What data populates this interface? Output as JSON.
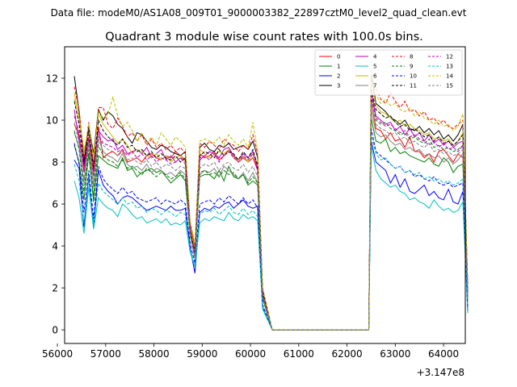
{
  "suptitle": "Data file: modeM0/AS1A08_009T01_9000003382_22897cztM0_level2_quad_clean.evt",
  "chart_data": {
    "type": "line",
    "title": "Quadrant 3 module wise count rates with 100.0s bins.",
    "xlabel": "",
    "ylabel": "",
    "x_offset_label": "+3.147e8",
    "xlim": [
      56150,
      64450
    ],
    "ylim": [
      -0.65,
      13.5
    ],
    "xticks": [
      56000,
      57000,
      58000,
      59000,
      60000,
      61000,
      62000,
      63000,
      64000
    ],
    "yticks": [
      0,
      2,
      4,
      6,
      8,
      10,
      12
    ],
    "x_start": 56350,
    "x_step": 100,
    "gap_start": 60350,
    "gap_end": 62500,
    "legend_position": "upper right",
    "legend_ncol": 4,
    "series": [
      {
        "name": "0",
        "color": "#ff0000",
        "dash": "solid",
        "segA": [
          9.8,
          9.3,
          7.6,
          9.1,
          7.5,
          9.7,
          8.2,
          8.4,
          8.5,
          8.3,
          8.6,
          8.0,
          8.1,
          8.2,
          8.0,
          8.3,
          8.4,
          8.2,
          8.1,
          8.3,
          8.2,
          8.5,
          8.3,
          8.1,
          4.8,
          3.8,
          8.4,
          8.2,
          8.3,
          8.5,
          8.1,
          8.3,
          8.6,
          8.3,
          8.0,
          8.2,
          8.0,
          8.2,
          7.6,
          1.8
        ],
        "segB": [
          10.9,
          9.6,
          9.5,
          9.1,
          9.4,
          9.0,
          9.1,
          8.7,
          9.2,
          8.5,
          8.5,
          8.2,
          8.4,
          8.0,
          8.5,
          8.6,
          8.3,
          8.0,
          8.4,
          8.2,
          1.9
        ]
      },
      {
        "name": "1",
        "color": "#008000",
        "dash": "solid",
        "segA": [
          8.8,
          8.0,
          6.2,
          8.4,
          6.1,
          8.3,
          8.1,
          7.9,
          7.8,
          7.7,
          8.2,
          7.6,
          7.7,
          7.3,
          7.5,
          7.6,
          7.7,
          7.5,
          7.6,
          7.3,
          7.0,
          7.2,
          7.4,
          7.1,
          4.5,
          3.5,
          7.3,
          7.4,
          7.4,
          7.2,
          7.6,
          7.1,
          7.8,
          7.3,
          7.2,
          7.4,
          6.9,
          7.1,
          6.9,
          1.5
        ],
        "segB": [
          10.1,
          9.0,
          8.9,
          9.1,
          8.5,
          8.7,
          8.4,
          8.5,
          8.3,
          8.2,
          8.1,
          8.0,
          8.2,
          7.9,
          7.8,
          8.2,
          8.0,
          7.5,
          7.8,
          7.9,
          1.4
        ]
      },
      {
        "name": "2",
        "color": "#0000ff",
        "dash": "solid",
        "segA": [
          8.1,
          7.7,
          4.9,
          7.3,
          4.9,
          7.6,
          6.9,
          6.6,
          6.4,
          6.0,
          6.3,
          6.4,
          6.3,
          6.1,
          5.9,
          5.7,
          5.8,
          5.9,
          5.8,
          5.7,
          5.9,
          5.7,
          5.7,
          5.8,
          3.9,
          2.7,
          5.6,
          5.8,
          5.7,
          5.9,
          5.8,
          6.0,
          6.1,
          5.8,
          6.0,
          6.2,
          5.9,
          5.8,
          5.9,
          1.1
        ],
        "segB": [
          9.0,
          8.0,
          7.8,
          7.6,
          7.0,
          7.4,
          6.8,
          7.2,
          6.6,
          6.5,
          6.7,
          6.9,
          6.4,
          6.6,
          6.3,
          6.2,
          6.7,
          6.1,
          6.0,
          6.6,
          0.9
        ]
      },
      {
        "name": "3",
        "color": "#000000",
        "dash": "solid",
        "segA": [
          12.1,
          10.4,
          8.0,
          9.7,
          8.4,
          10.5,
          10.0,
          10.4,
          10.2,
          9.8,
          9.6,
          9.2,
          8.9,
          9.4,
          9.3,
          9.0,
          8.7,
          8.6,
          8.8,
          8.7,
          8.5,
          8.4,
          8.3,
          8.5,
          5.0,
          3.9,
          8.7,
          8.9,
          8.6,
          8.5,
          8.8,
          8.7,
          8.9,
          8.6,
          8.7,
          8.8,
          8.6,
          9.0,
          8.2,
          1.9
        ],
        "segB": [
          12.2,
          10.8,
          10.6,
          10.4,
          10.1,
          10.0,
          9.8,
          10.0,
          9.6,
          9.5,
          9.7,
          9.4,
          9.6,
          9.3,
          9.5,
          9.1,
          9.3,
          9.0,
          9.3,
          9.8,
          2.1
        ]
      },
      {
        "name": "4",
        "color": "#bf00bf",
        "dash": "solid",
        "segA": [
          10.5,
          9.0,
          7.8,
          9.2,
          7.9,
          9.5,
          9.2,
          9.0,
          9.1,
          8.6,
          8.8,
          8.4,
          8.5,
          8.6,
          8.4,
          8.7,
          8.2,
          8.4,
          8.6,
          8.1,
          8.3,
          8.0,
          8.2,
          8.1,
          4.6,
          3.6,
          8.1,
          8.3,
          8.5,
          8.4,
          8.2,
          8.6,
          8.7,
          8.3,
          8.1,
          8.4,
          8.2,
          8.5,
          7.6,
          1.7
        ],
        "segB": [
          11.4,
          10.2,
          10.0,
          9.8,
          9.9,
          9.5,
          9.7,
          9.3,
          9.6,
          9.2,
          9.4,
          9.0,
          9.3,
          8.9,
          9.1,
          8.8,
          9.0,
          8.7,
          8.9,
          9.0,
          1.9
        ]
      },
      {
        "name": "5",
        "color": "#00bfbf",
        "dash": "solid",
        "segA": [
          7.1,
          6.3,
          4.6,
          6.8,
          4.8,
          6.3,
          6.0,
          5.8,
          5.7,
          5.4,
          6.0,
          5.8,
          5.5,
          5.3,
          5.4,
          5.1,
          5.2,
          5.3,
          5.1,
          5.3,
          5.0,
          5.1,
          5.0,
          5.2,
          3.7,
          3.0,
          5.1,
          5.3,
          5.2,
          5.4,
          5.3,
          5.2,
          5.6,
          5.3,
          5.2,
          5.5,
          5.3,
          5.4,
          5.2,
          1.0
        ],
        "segB": [
          8.8,
          7.6,
          7.2,
          7.0,
          6.8,
          6.9,
          6.6,
          6.5,
          6.2,
          6.3,
          6.1,
          6.0,
          5.8,
          6.2,
          5.9,
          5.7,
          5.8,
          5.6,
          5.7,
          6.1,
          0.8
        ]
      },
      {
        "name": "6",
        "color": "#bfbf00",
        "dash": "solid",
        "segA": [
          11.3,
          10.0,
          8.6,
          9.4,
          8.3,
          10.3,
          9.8,
          9.5,
          9.2,
          8.9,
          9.1,
          8.8,
          8.4,
          8.6,
          8.5,
          8.3,
          8.2,
          8.4,
          8.1,
          8.3,
          8.0,
          8.2,
          8.3,
          8.0,
          4.9,
          3.9,
          8.6,
          8.4,
          8.2,
          8.3,
          8.5,
          8.4,
          8.6,
          8.2,
          8.1,
          8.3,
          8.0,
          8.4,
          7.9,
          1.8
        ],
        "segB": [
          11.9,
          10.7,
          10.4,
          10.3,
          10.1,
          9.9,
          10.0,
          9.7,
          9.8,
          9.6,
          9.5,
          9.3,
          9.4,
          9.1,
          9.2,
          9.0,
          9.1,
          8.8,
          9.0,
          9.4,
          1.9
        ]
      },
      {
        "name": "7",
        "color": "#808080",
        "dash": "solid",
        "segA": [
          9.4,
          8.7,
          7.0,
          8.9,
          6.8,
          9.1,
          8.5,
          8.3,
          8.2,
          8.0,
          8.4,
          7.9,
          7.7,
          7.8,
          7.6,
          7.9,
          7.5,
          7.7,
          7.6,
          7.4,
          7.5,
          7.3,
          7.6,
          7.4,
          4.5,
          3.4,
          7.4,
          7.6,
          7.5,
          7.7,
          7.3,
          7.8,
          7.6,
          7.4,
          7.2,
          7.5,
          7.1,
          7.5,
          7.0,
          1.6
        ],
        "segB": [
          10.5,
          9.4,
          9.2,
          9.3,
          9.0,
          8.8,
          8.9,
          8.6,
          8.7,
          8.5,
          8.6,
          8.3,
          8.4,
          8.2,
          8.3,
          8.0,
          8.2,
          7.9,
          8.1,
          8.4,
          1.6
        ]
      },
      {
        "name": "8",
        "color": "#ff0000",
        "dash": "dashed",
        "segA": [
          11.6,
          10.5,
          8.2,
          9.9,
          8.0,
          10.6,
          10.6,
          9.8,
          9.6,
          10.1,
          9.7,
          9.2,
          9.4,
          9.0,
          9.3,
          8.8,
          9.1,
          8.7,
          8.9,
          8.6,
          8.8,
          8.5,
          8.7,
          8.4,
          5.0,
          4.0,
          8.9,
          8.7,
          9.0,
          8.8,
          8.6,
          9.1,
          8.9,
          8.8,
          8.5,
          8.8,
          8.6,
          9.3,
          8.4,
          2.0
        ],
        "segB": [
          12.1,
          11.5,
          11.0,
          10.8,
          11.3,
          10.9,
          10.6,
          10.9,
          10.4,
          10.5,
          10.2,
          10.4,
          10.0,
          10.1,
          9.8,
          10.0,
          9.7,
          9.6,
          9.8,
          10.0,
          2.2
        ]
      },
      {
        "name": "9",
        "color": "#008000",
        "dash": "dashed",
        "segA": [
          9.5,
          8.6,
          6.6,
          8.6,
          6.4,
          8.8,
          8.3,
          8.1,
          8.0,
          7.8,
          8.1,
          7.7,
          7.8,
          7.6,
          7.4,
          7.7,
          7.5,
          7.3,
          7.5,
          7.4,
          7.2,
          7.3,
          7.5,
          7.2,
          4.5,
          3.5,
          7.5,
          7.6,
          7.4,
          7.5,
          7.3,
          7.6,
          7.4,
          7.5,
          7.2,
          7.4,
          7.0,
          7.3,
          7.0,
          1.6
        ],
        "segB": [
          11.1,
          10.0,
          9.8,
          9.9,
          9.6,
          9.5,
          9.3,
          9.4,
          9.1,
          9.2,
          9.0,
          8.9,
          9.1,
          8.7,
          8.8,
          8.6,
          8.7,
          8.5,
          8.6,
          8.8,
          1.7
        ]
      },
      {
        "name": "10",
        "color": "#0000ff",
        "dash": "dashed",
        "segA": [
          8.9,
          7.9,
          5.6,
          7.6,
          5.3,
          7.8,
          7.2,
          6.9,
          6.7,
          6.5,
          6.8,
          6.5,
          6.6,
          6.3,
          6.2,
          6.1,
          6.2,
          6.3,
          6.0,
          6.2,
          6.1,
          6.0,
          6.2,
          6.0,
          4.1,
          3.2,
          6.0,
          6.1,
          6.2,
          6.0,
          6.3,
          6.1,
          6.4,
          6.2,
          6.0,
          6.3,
          6.0,
          6.2,
          5.8,
          1.2
        ],
        "segB": [
          9.6,
          8.5,
          8.3,
          8.1,
          7.9,
          7.7,
          7.8,
          7.5,
          7.6,
          7.3,
          7.4,
          7.2,
          7.1,
          7.3,
          7.0,
          6.9,
          7.0,
          6.8,
          6.9,
          7.0,
          1.0
        ]
      },
      {
        "name": "11",
        "color": "#000000",
        "dash": "dashed",
        "segA": [
          10.9,
          9.8,
          7.9,
          9.5,
          7.7,
          10.0,
          9.5,
          9.2,
          9.0,
          8.8,
          9.1,
          8.7,
          8.8,
          8.5,
          8.6,
          8.3,
          8.5,
          8.2,
          8.4,
          8.2,
          8.1,
          8.3,
          8.0,
          8.2,
          4.7,
          3.7,
          8.3,
          8.5,
          8.4,
          8.2,
          8.6,
          8.3,
          8.5,
          8.4,
          8.1,
          8.5,
          8.2,
          8.6,
          7.8,
          1.8
        ],
        "segB": [
          11.5,
          10.5,
          10.3,
          10.1,
          10.2,
          9.9,
          9.7,
          9.8,
          9.5,
          9.6,
          9.4,
          9.2,
          9.3,
          9.0,
          9.2,
          8.9,
          9.0,
          8.8,
          9.0,
          9.3,
          1.8
        ]
      },
      {
        "name": "12",
        "color": "#bf00bf",
        "dash": "dashed",
        "segA": [
          10.2,
          9.4,
          7.5,
          9.0,
          7.3,
          9.3,
          8.9,
          8.8,
          8.7,
          8.5,
          8.6,
          8.3,
          8.5,
          8.2,
          8.4,
          8.1,
          8.3,
          8.0,
          8.2,
          8.1,
          7.9,
          8.0,
          8.2,
          7.9,
          4.6,
          3.6,
          8.2,
          8.3,
          8.1,
          8.4,
          8.0,
          8.3,
          8.5,
          8.2,
          8.0,
          8.3,
          8.1,
          8.4,
          7.7,
          1.7
        ],
        "segB": [
          11.2,
          10.1,
          9.9,
          9.7,
          9.8,
          9.6,
          9.4,
          9.5,
          9.2,
          9.3,
          9.1,
          9.0,
          8.8,
          9.0,
          8.7,
          8.9,
          8.6,
          8.7,
          8.5,
          8.8,
          1.7
        ]
      },
      {
        "name": "13",
        "color": "#00bfbf",
        "dash": "dashed",
        "segA": [
          7.9,
          7.1,
          5.1,
          7.2,
          5.0,
          7.0,
          6.6,
          6.4,
          6.2,
          6.0,
          6.3,
          6.0,
          6.1,
          5.8,
          5.9,
          5.6,
          5.8,
          5.7,
          5.5,
          5.7,
          5.6,
          5.4,
          5.6,
          5.5,
          3.8,
          3.1,
          5.5,
          5.7,
          5.6,
          5.8,
          5.5,
          5.7,
          5.9,
          5.6,
          5.5,
          5.8,
          5.5,
          5.7,
          5.4,
          1.1
        ],
        "segB": [
          9.3,
          8.4,
          8.1,
          8.2,
          7.9,
          7.7,
          7.8,
          7.5,
          7.6,
          7.4,
          7.5,
          7.2,
          7.3,
          7.1,
          7.2,
          7.0,
          7.1,
          6.9,
          7.0,
          7.2,
          1.0
        ]
      },
      {
        "name": "14",
        "color": "#bfbf00",
        "dash": "dashed",
        "segA": [
          11.0,
          10.2,
          8.4,
          9.8,
          8.1,
          10.4,
          10.1,
          10.3,
          11.1,
          10.2,
          9.7,
          9.9,
          9.5,
          9.0,
          9.4,
          8.9,
          9.2,
          8.8,
          9.4,
          9.1,
          8.8,
          9.2,
          9.0,
          8.7,
          5.2,
          4.1,
          9.0,
          9.1,
          9.0,
          8.9,
          9.2,
          8.8,
          9.3,
          9.0,
          8.8,
          9.1,
          8.7,
          9.9,
          8.5,
          2.0
        ],
        "segB": [
          12.4,
          11.2,
          10.8,
          11.0,
          10.7,
          10.8,
          10.5,
          10.4,
          10.6,
          10.2,
          10.4,
          10.1,
          10.0,
          9.8,
          10.0,
          9.7,
          9.8,
          9.5,
          9.7,
          10.3,
          2.1
        ]
      },
      {
        "name": "15",
        "color": "#808080",
        "dash": "dashed",
        "segA": [
          9.9,
          8.9,
          7.2,
          9.0,
          7.0,
          9.2,
          8.8,
          8.6,
          8.5,
          8.3,
          8.5,
          8.1,
          8.2,
          8.0,
          7.9,
          8.1,
          7.8,
          8.0,
          7.7,
          7.9,
          7.8,
          7.6,
          7.8,
          7.7,
          4.6,
          3.5,
          7.7,
          7.9,
          7.8,
          8.0,
          7.6,
          7.9,
          8.0,
          7.7,
          7.6,
          7.9,
          7.5,
          7.8,
          7.3,
          1.6
        ],
        "segB": [
          10.8,
          9.8,
          9.6,
          9.5,
          9.3,
          9.4,
          9.1,
          9.2,
          8.9,
          9.0,
          8.8,
          8.7,
          8.9,
          8.5,
          8.6,
          8.4,
          8.5,
          8.3,
          8.4,
          8.6,
          1.6
        ]
      }
    ]
  }
}
